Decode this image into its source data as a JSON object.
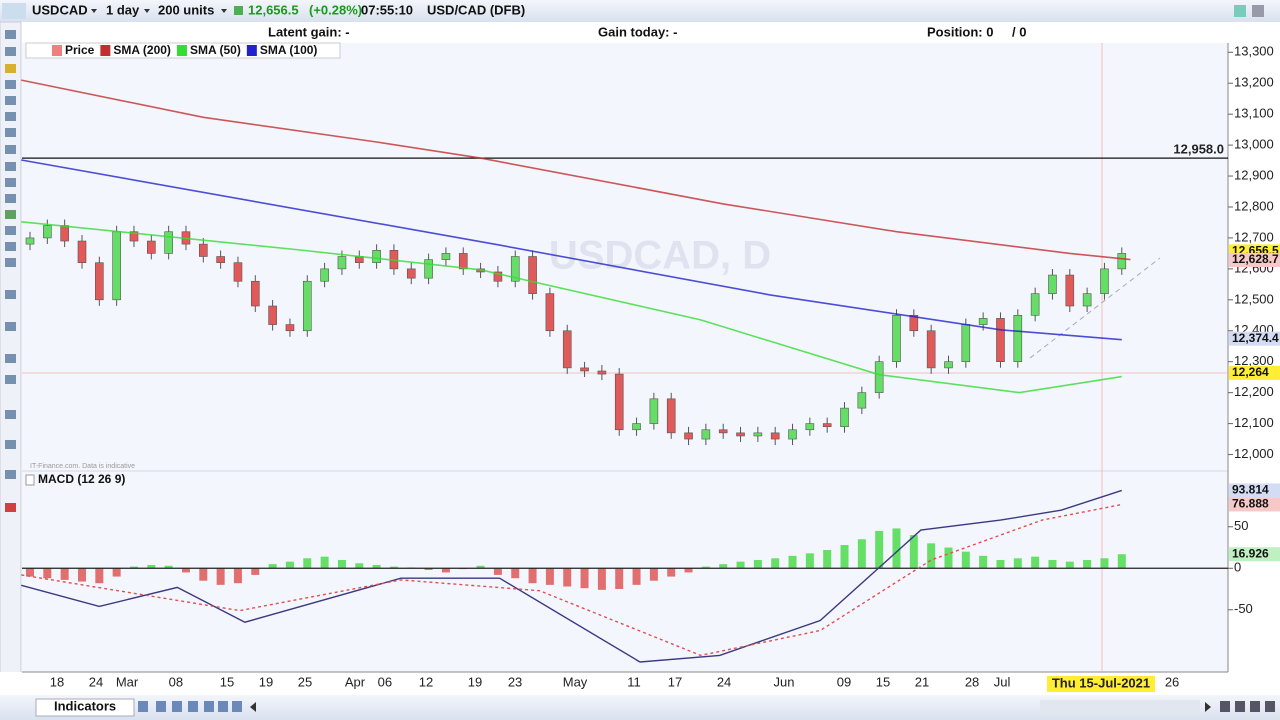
{
  "toolbar": {
    "symbol": "USDCAD",
    "interval": "1 day",
    "size": "200 units",
    "price": "12,656.5",
    "change": "(+0.28%)",
    "time": "07:55:10",
    "instrument": "USD/CAD (DFB)"
  },
  "info_bar": {
    "latent_gain": "Latent gain: -",
    "gain_today": "Gain today: -",
    "position": "Position: 0",
    "position_pct": "/ 0"
  },
  "chart_data": [
    {
      "type": "candlestick",
      "watermark": "USDCAD, D",
      "credit": "IT-Finance.com. Data is indicative",
      "series": [
        {
          "name": "Price",
          "color": "#f08080",
          "open": [
            12680,
            12700,
            12740,
            12690,
            12620,
            12500,
            12720,
            12690,
            12650,
            12720,
            12680,
            12640,
            12620,
            12560,
            12480,
            12420,
            12400,
            12560,
            12600,
            12640,
            12620,
            12660,
            12600,
            12570,
            12630,
            12650,
            12600,
            12590,
            12560,
            12640,
            12520,
            12400,
            12280,
            12270,
            12260,
            12080,
            12100,
            12180,
            12070,
            12050,
            12080,
            12070,
            12060,
            12070,
            12050,
            12080,
            12100,
            12090,
            12150,
            12200,
            12300,
            12450,
            12400,
            12280,
            12300,
            12420,
            12440,
            12300,
            12450,
            12520,
            12580,
            12480,
            12520,
            12600
          ],
          "close": [
            12700,
            12740,
            12690,
            12620,
            12500,
            12720,
            12690,
            12650,
            12720,
            12680,
            12640,
            12620,
            12560,
            12480,
            12420,
            12400,
            12560,
            12600,
            12640,
            12620,
            12660,
            12600,
            12570,
            12630,
            12650,
            12600,
            12590,
            12560,
            12640,
            12520,
            12400,
            12280,
            12270,
            12260,
            12080,
            12100,
            12180,
            12070,
            12050,
            12080,
            12070,
            12060,
            12070,
            12050,
            12080,
            12100,
            12090,
            12150,
            12200,
            12300,
            12450,
            12400,
            12280,
            12300,
            12420,
            12440,
            12300,
            12450,
            12520,
            12580,
            12480,
            12520,
            12600,
            12650
          ]
        },
        {
          "name": "SMA (200)",
          "color": "#c03030",
          "x": [
            -0.5,
            10,
            20,
            26,
            40,
            50,
            60,
            63.5
          ],
          "values": [
            13210,
            13090,
            13010,
            12958,
            12810,
            12720,
            12650,
            12630
          ]
        },
        {
          "name": "SMA (50)",
          "color": "#33dd33",
          "x": [
            -0.5,
            15.6,
            26,
            38.7,
            49,
            57.1,
            63
          ],
          "values": [
            12752,
            12661,
            12597,
            12435,
            12258,
            12200,
            12252
          ]
        },
        {
          "name": "SMA (100)",
          "color": "#2222cc",
          "x": [
            -0.5,
            27.1,
            42.7,
            56,
            63
          ],
          "values": [
            12952,
            12677,
            12516,
            12403,
            12371
          ]
        }
      ],
      "ylim": [
        11950,
        13330
      ],
      "yticks": [
        {
          "value": 13300,
          "label": "13,300"
        },
        {
          "value": 13200,
          "label": "13,200"
        },
        {
          "value": 13100,
          "label": "13,100"
        },
        {
          "value": 13000,
          "label": "13,000"
        },
        {
          "value": 12900,
          "label": "12,900"
        },
        {
          "value": 12800,
          "label": "12,800"
        },
        {
          "value": 12700,
          "label": "12,700"
        },
        {
          "value": 12600,
          "label": "12,600"
        },
        {
          "value": 12500,
          "label": "12,500"
        },
        {
          "value": 12400,
          "label": "12,400"
        },
        {
          "value": 12300,
          "label": "12,300"
        },
        {
          "value": 12200,
          "label": "12,200"
        },
        {
          "value": 12100,
          "label": "12,100"
        },
        {
          "value": 12000,
          "label": "12,000"
        }
      ],
      "xticks": [
        {
          "value": 1.56,
          "label": "18"
        },
        {
          "value": 3.81,
          "label": "24"
        },
        {
          "value": 5.6,
          "label": "Mar"
        },
        {
          "value": 8.42,
          "label": "08"
        },
        {
          "value": 11.37,
          "label": "15"
        },
        {
          "value": 13.62,
          "label": "19"
        },
        {
          "value": 15.87,
          "label": "25"
        },
        {
          "value": 18.75,
          "label": "Apr"
        },
        {
          "value": 20.48,
          "label": "06"
        },
        {
          "value": 22.85,
          "label": "12"
        },
        {
          "value": 25.68,
          "label": "19"
        },
        {
          "value": 27.99,
          "label": "23"
        },
        {
          "value": 31.45,
          "label": "May"
        },
        {
          "value": 34.85,
          "label": "11"
        },
        {
          "value": 37.22,
          "label": "17"
        },
        {
          "value": 40.05,
          "label": "24"
        },
        {
          "value": 43.51,
          "label": "Jun"
        },
        {
          "value": 46.97,
          "label": "09"
        },
        {
          "value": 49.22,
          "label": "15"
        },
        {
          "value": 51.47,
          "label": "21"
        },
        {
          "value": 54.36,
          "label": "28"
        },
        {
          "value": 56.09,
          "label": "Jul"
        },
        {
          "value": 65.9,
          "label": "26"
        }
      ],
      "date_label": "Thu 15-Jul-2021",
      "hline": {
        "value": 12958,
        "label": "12,958.0"
      },
      "tags": [
        {
          "value": 12656.5,
          "label": "12,656.5",
          "color": "#ffee33"
        },
        {
          "value": 12628.7,
          "label": "12,628.7",
          "color": "#f6c8c8"
        },
        {
          "value": 12374.4,
          "label": "12,374.4",
          "color": "#d4dcf4"
        },
        {
          "value": 12264,
          "label": "12,264",
          "color": "#ffee33"
        }
      ]
    },
    {
      "type": "macd",
      "title": "MACD (12 26 9)",
      "series": [
        {
          "color": "#3a3a80",
          "x": [
            -0.5,
            4,
            8.5,
            12.4,
            21.4,
            27.1,
            35.2,
            39.8,
            45.6,
            51.4,
            56,
            59.5,
            63
          ],
          "values": [
            -20.5,
            -46,
            -23,
            -65,
            -12,
            -12,
            -113,
            -105,
            -63,
            46,
            58,
            70,
            93.814
          ]
        },
        {
          "color": "#e05050",
          "x": [
            -0.5,
            12.1,
            21.4,
            29.4,
            38.7,
            45.6,
            52,
            58.4,
            63
          ],
          "values": [
            -8,
            -51,
            -14,
            -27,
            -105,
            -75,
            10,
            58,
            76.888
          ]
        },
        {
          "color": "#55dd55",
          "values": [
            -10,
            -12,
            -14,
            -16,
            -18,
            -10,
            2,
            4,
            3,
            -5,
            -15,
            -20,
            -18,
            -8,
            5,
            8,
            12,
            14,
            10,
            6,
            4,
            2,
            1,
            -2,
            -5,
            -1,
            3,
            -8,
            -12,
            -18,
            -20,
            -22,
            -24,
            -26,
            -25,
            -20,
            -15,
            -10,
            -5,
            2,
            5,
            8,
            10,
            12,
            15,
            18,
            22,
            28,
            35,
            45,
            48,
            40,
            30,
            25,
            20,
            15,
            10,
            12,
            14,
            10,
            8,
            10,
            12,
            16.926
          ]
        }
      ],
      "ylim": [
        -125,
        116
      ],
      "yticks": [
        50,
        0,
        -50
      ],
      "tags": [
        {
          "value": 93.814,
          "label": "93.814",
          "color": "#d4dcf4"
        },
        {
          "value": 76.888,
          "label": "76.888",
          "color": "#f6c8c8"
        },
        {
          "value": 16.926,
          "label": "16.926",
          "color": "#bff0bf"
        }
      ]
    }
  ],
  "bottom": {
    "indicators": "Indicators"
  }
}
